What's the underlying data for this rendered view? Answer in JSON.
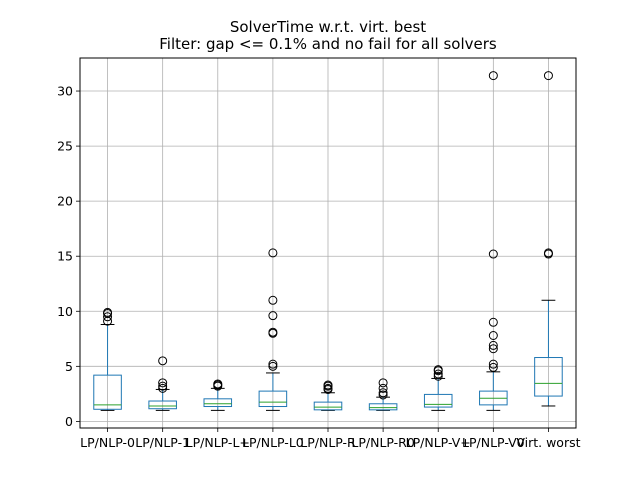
{
  "chart_data": {
    "type": "box",
    "title": "SolverTime w.r.t. virt. best",
    "subtitle": "Filter: gap <= 0.1% and no fail for all solvers",
    "xlabel": "",
    "ylabel": "",
    "ylim": [
      -0.6,
      33
    ],
    "yticks": [
      0,
      5,
      10,
      15,
      20,
      25,
      30
    ],
    "ytick_labels": [
      "0",
      "5",
      "10",
      "15",
      "20",
      "25",
      "30"
    ],
    "grid": true,
    "categories": [
      "LP/NLP-0",
      "LP/NLP-1",
      "LP/NLP-L+",
      "LP/NLP-L0",
      "LP/NLP-R",
      "LP/NLP-R0",
      "LP/NLP-V+",
      "LP/NLP-V0",
      "Virt. worst"
    ],
    "boxes": [
      {
        "whislo": 1.0,
        "q1": 1.1,
        "med": 1.5,
        "q3": 4.2,
        "whishi": 8.8,
        "fliers": [
          9.1,
          9.5,
          9.8,
          9.9
        ]
      },
      {
        "whislo": 1.0,
        "q1": 1.15,
        "med": 1.4,
        "q3": 1.85,
        "whishi": 2.9,
        "fliers": [
          3.0,
          3.2,
          3.5,
          5.5
        ]
      },
      {
        "whislo": 1.0,
        "q1": 1.35,
        "med": 1.6,
        "q3": 2.05,
        "whishi": 3.0,
        "fliers": [
          3.2,
          3.3,
          3.4
        ]
      },
      {
        "whislo": 1.0,
        "q1": 1.35,
        "med": 1.75,
        "q3": 2.75,
        "whishi": 4.4,
        "fliers": [
          5.0,
          5.2,
          8.0,
          8.1,
          9.6,
          11.0,
          15.3
        ]
      },
      {
        "whislo": 1.0,
        "q1": 1.05,
        "med": 1.3,
        "q3": 1.75,
        "whishi": 2.6,
        "fliers": [
          2.9,
          3.0,
          3.2,
          3.3
        ]
      },
      {
        "whislo": 1.0,
        "q1": 1.05,
        "med": 1.25,
        "q3": 1.6,
        "whishi": 2.2,
        "fliers": [
          2.4,
          2.6,
          3.0,
          3.5
        ]
      },
      {
        "whislo": 1.0,
        "q1": 1.3,
        "med": 1.55,
        "q3": 2.45,
        "whishi": 3.9,
        "fliers": [
          4.1,
          4.3,
          4.6,
          4.7
        ]
      },
      {
        "whislo": 1.0,
        "q1": 1.5,
        "med": 2.1,
        "q3": 2.75,
        "whishi": 4.5,
        "fliers": [
          4.9,
          5.2,
          6.6,
          6.9,
          7.8,
          9.0,
          15.2,
          31.4
        ]
      },
      {
        "whislo": 1.4,
        "q1": 2.3,
        "med": 3.45,
        "q3": 5.8,
        "whishi": 11.0,
        "fliers": [
          15.2,
          15.3,
          31.4
        ]
      }
    ],
    "colors": {
      "box": "#1f77b4",
      "median": "#2ca02c",
      "whisker": "#000000",
      "flier": "#000000",
      "grid": "#b0b0b0",
      "axes": "#000000"
    }
  }
}
